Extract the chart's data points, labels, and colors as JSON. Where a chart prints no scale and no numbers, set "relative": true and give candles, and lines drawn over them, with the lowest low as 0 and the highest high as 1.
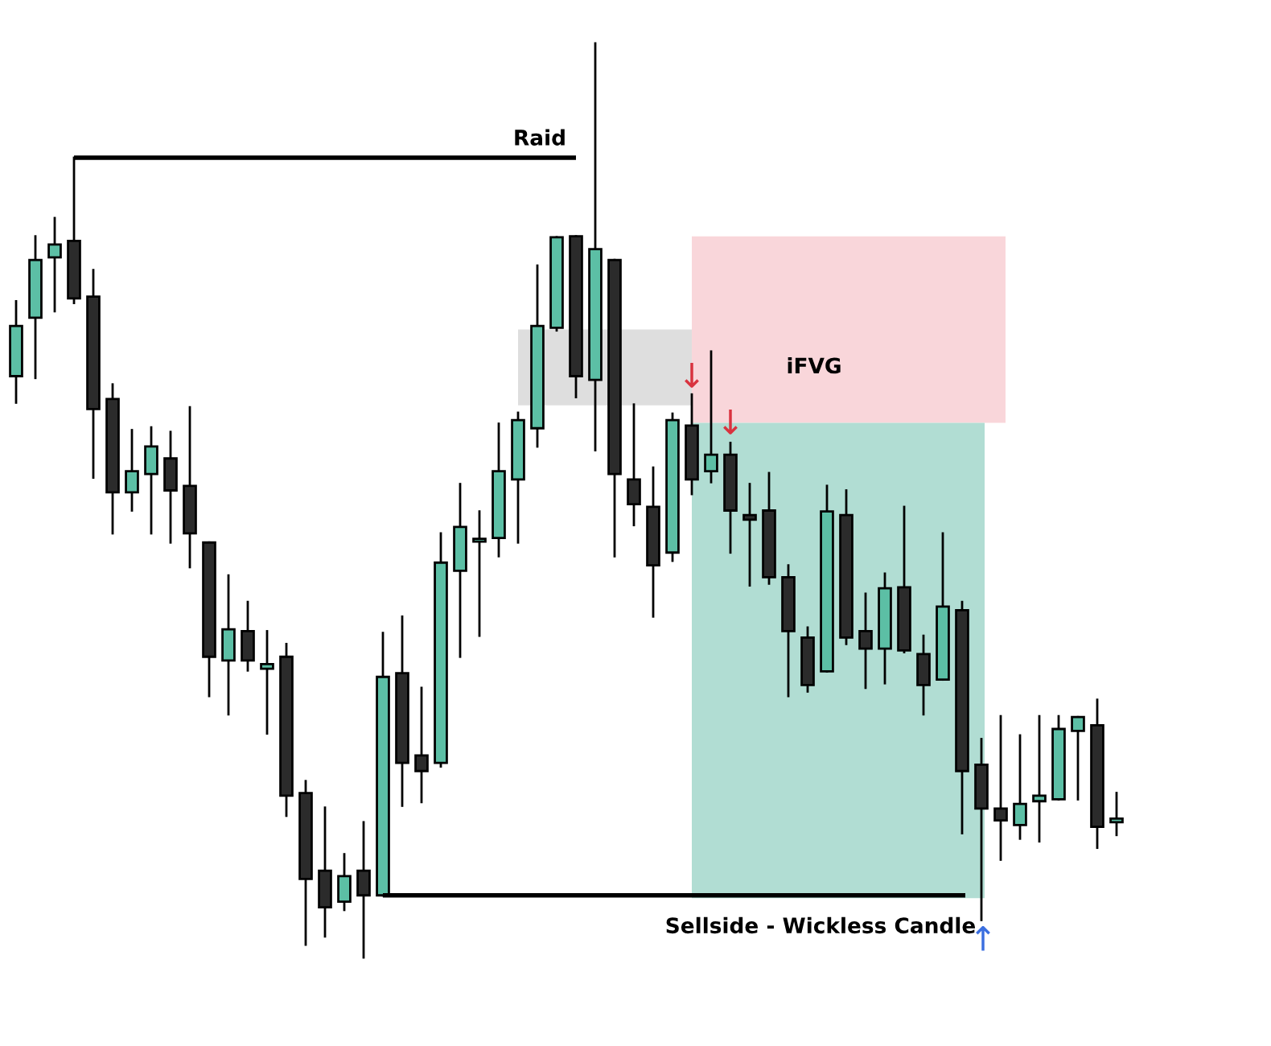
{
  "chart_data": {
    "type": "candlestick",
    "relative": true,
    "categories": [
      null,
      null,
      null,
      null,
      null,
      null,
      null,
      null,
      null,
      null,
      null,
      null,
      null,
      null,
      null,
      null,
      null,
      null,
      null,
      null,
      null,
      null,
      null,
      null,
      null,
      null,
      null,
      null,
      null,
      null,
      null,
      null,
      null,
      null,
      null,
      null,
      null,
      null,
      null,
      null,
      null,
      null,
      null,
      null,
      null,
      null,
      null,
      null,
      null,
      null,
      null,
      null,
      null,
      null,
      null,
      null,
      null,
      null
    ],
    "ohlc": [
      [
        0.636,
        0.718,
        0.607,
        0.691
      ],
      [
        0.7,
        0.789,
        0.634,
        0.763
      ],
      [
        0.766,
        0.809,
        0.707,
        0.78
      ],
      [
        0.784,
        0.875,
        0.716,
        0.721
      ],
      [
        0.723,
        0.752,
        0.525,
        0.6
      ],
      [
        0.611,
        0.627,
        0.464,
        0.509
      ],
      [
        0.509,
        0.577,
        0.489,
        0.532
      ],
      [
        0.529,
        0.58,
        0.464,
        0.559
      ],
      [
        0.546,
        0.575,
        0.454,
        0.511
      ],
      [
        0.516,
        0.602,
        0.427,
        0.464
      ],
      [
        0.454,
        0.454,
        0.286,
        0.329
      ],
      [
        0.325,
        0.418,
        0.266,
        0.359
      ],
      [
        0.357,
        0.389,
        0.314,
        0.325
      ],
      [
        0.316,
        0.357,
        0.245,
        0.321
      ],
      [
        0.329,
        0.343,
        0.155,
        0.177
      ],
      [
        0.18,
        0.193,
        0.014,
        0.086
      ],
      [
        0.095,
        0.164,
        0.023,
        0.055
      ],
      [
        0.061,
        0.113,
        0.052,
        0.089
      ],
      [
        0.095,
        0.148,
        0.0,
        0.068
      ],
      [
        0.068,
        0.355,
        0.068,
        0.307
      ],
      [
        0.311,
        0.373,
        0.166,
        0.213
      ],
      [
        0.221,
        0.295,
        0.17,
        0.204
      ],
      [
        0.213,
        0.464,
        0.209,
        0.432
      ],
      [
        0.423,
        0.518,
        0.329,
        0.471
      ],
      [
        0.455,
        0.488,
        0.352,
        0.457
      ],
      [
        0.459,
        0.584,
        0.439,
        0.532
      ],
      [
        0.523,
        0.596,
        0.454,
        0.588
      ],
      [
        0.579,
        0.757,
        0.559,
        0.691
      ],
      [
        0.689,
        0.788,
        0.686,
        0.788
      ],
      [
        0.789,
        0.789,
        0.613,
        0.636
      ],
      [
        0.632,
        1.0,
        0.555,
        0.775
      ],
      [
        0.763,
        0.763,
        0.439,
        0.529
      ],
      [
        0.523,
        0.605,
        0.473,
        0.496
      ],
      [
        0.493,
        0.536,
        0.373,
        0.429
      ],
      [
        0.443,
        0.595,
        0.434,
        0.588
      ],
      [
        0.582,
        0.616,
        0.507,
        0.523
      ],
      [
        0.532,
        0.663,
        0.52,
        0.55
      ],
      [
        0.55,
        0.563,
        0.443,
        0.489
      ],
      [
        0.484,
        0.518,
        0.407,
        0.479
      ],
      [
        0.489,
        0.53,
        0.409,
        0.416
      ],
      [
        0.416,
        0.429,
        0.286,
        0.357
      ],
      [
        0.35,
        0.361,
        0.291,
        0.298
      ],
      [
        0.313,
        0.516,
        0.313,
        0.488
      ],
      [
        0.484,
        0.511,
        0.343,
        0.35
      ],
      [
        0.357,
        0.398,
        0.295,
        0.338
      ],
      [
        0.338,
        0.42,
        0.3,
        0.404
      ],
      [
        0.405,
        0.493,
        0.334,
        0.336
      ],
      [
        0.332,
        0.352,
        0.266,
        0.298
      ],
      [
        0.304,
        0.464,
        0.304,
        0.384
      ],
      [
        0.38,
        0.389,
        0.136,
        0.204
      ],
      [
        0.211,
        0.239,
        0.041,
        0.163
      ],
      [
        0.163,
        0.264,
        0.107,
        0.15
      ],
      [
        0.145,
        0.243,
        0.13,
        0.168
      ],
      [
        0.171,
        0.264,
        0.127,
        0.177
      ],
      [
        0.173,
        0.264,
        0.173,
        0.25
      ],
      [
        0.248,
        0.263,
        0.173,
        0.263
      ],
      [
        0.254,
        0.282,
        0.12,
        0.143
      ],
      [
        0.148,
        0.18,
        0.134,
        0.152
      ]
    ],
    "colors": [
      "#5cbfa5",
      "#5cbfa5",
      "#5cbfa5",
      "#2b2b2b",
      "#2b2b2b",
      "#2b2b2b",
      "#5cbfa5",
      "#5cbfa5",
      "#2b2b2b",
      "#2b2b2b",
      "#2b2b2b",
      "#5cbfa5",
      "#2b2b2b",
      "#5cbfa5",
      "#2b2b2b",
      "#2b2b2b",
      "#2b2b2b",
      "#5cbfa5",
      "#2b2b2b",
      "#5cbfa5",
      "#2b2b2b",
      "#2b2b2b",
      "#5cbfa5",
      "#5cbfa5",
      "#5cbfa5",
      "#5cbfa5",
      "#5cbfa5",
      "#5cbfa5",
      "#5cbfa5",
      "#2b2b2b",
      "#5cbfa5",
      "#2b2b2b",
      "#2b2b2b",
      "#2b2b2b",
      "#5cbfa5",
      "#2b2b2b",
      "#5cbfa5",
      "#2b2b2b",
      "#2b2b2b",
      "#2b2b2b",
      "#2b2b2b",
      "#2b2b2b",
      "#5cbfa5",
      "#2b2b2b",
      "#2b2b2b",
      "#5cbfa5",
      "#2b2b2b",
      "#2b2b2b",
      "#5cbfa5",
      "#2b2b2b",
      "#2b2b2b",
      "#2b2b2b",
      "#5cbfa5",
      "#5cbfa5",
      "#5cbfa5",
      "#5cbfa5",
      "#2b2b2b",
      "#5cbfa5"
    ],
    "ref_lines": [
      {
        "axis": "y",
        "value": 0.875,
        "label": "Raid",
        "color": "#000000"
      },
      {
        "axis": "y",
        "value": 0.068,
        "label": "Sellside - Wickless Candle",
        "color": "#000000"
      }
    ],
    "bands": [
      {
        "axis": "y",
        "from": 0.604,
        "to": 0.687,
        "label": "iFVG",
        "color": "#dedede"
      },
      {
        "axis": "y",
        "from": 0.585,
        "to": 0.789,
        "color": "#f9d6da"
      },
      {
        "axis": "y",
        "from": 0.065,
        "to": 0.585,
        "color": "#b1ddd3"
      }
    ],
    "annotations": [
      "↓",
      "↓",
      "↑"
    ]
  }
}
